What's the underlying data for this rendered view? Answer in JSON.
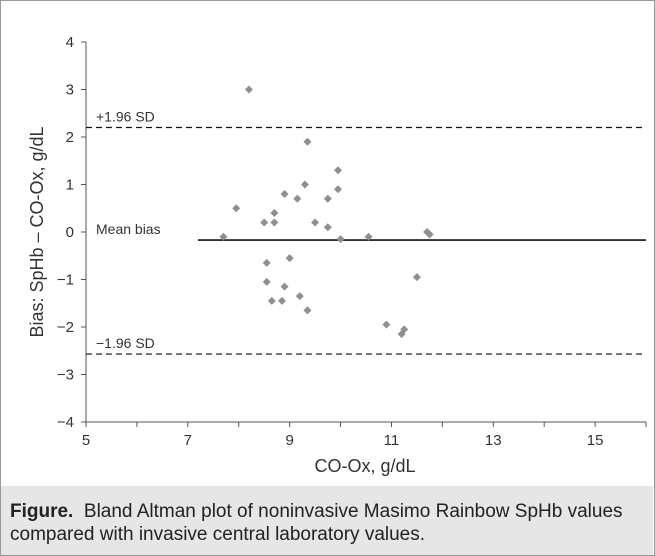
{
  "chart_data": {
    "type": "scatter",
    "xlabel": "CO-Ox, g/dL",
    "ylabel": "Bias: SpHb – CO-Ox, g/dL",
    "xlim": [
      5,
      16
    ],
    "ylim": [
      -4,
      4
    ],
    "xticks": [
      "5",
      "7",
      "9",
      "11",
      "13",
      "15"
    ],
    "yticks": [
      "4",
      "3",
      "2",
      "1",
      "0",
      "−1",
      "−2",
      "−3",
      "−4"
    ],
    "grid": false,
    "marker_color": "#8f8f8f",
    "points": [
      {
        "x": 7.7,
        "y": -0.1
      },
      {
        "x": 7.95,
        "y": 0.5
      },
      {
        "x": 8.2,
        "y": 3.0
      },
      {
        "x": 8.5,
        "y": 0.2
      },
      {
        "x": 8.55,
        "y": -0.65
      },
      {
        "x": 8.55,
        "y": -1.05
      },
      {
        "x": 8.65,
        "y": -1.45
      },
      {
        "x": 8.7,
        "y": 0.4
      },
      {
        "x": 8.7,
        "y": 0.2
      },
      {
        "x": 8.85,
        "y": -1.45
      },
      {
        "x": 8.9,
        "y": 0.8
      },
      {
        "x": 8.9,
        "y": -1.15
      },
      {
        "x": 9.0,
        "y": -0.55
      },
      {
        "x": 9.15,
        "y": 0.7
      },
      {
        "x": 9.2,
        "y": -1.35
      },
      {
        "x": 9.3,
        "y": 1.0
      },
      {
        "x": 9.35,
        "y": 1.9
      },
      {
        "x": 9.35,
        "y": -1.65
      },
      {
        "x": 9.5,
        "y": 0.2
      },
      {
        "x": 9.75,
        "y": 0.7
      },
      {
        "x": 9.75,
        "y": 0.1
      },
      {
        "x": 9.95,
        "y": 1.3
      },
      {
        "x": 9.95,
        "y": 0.9
      },
      {
        "x": 10.0,
        "y": -0.15
      },
      {
        "x": 10.55,
        "y": -0.1
      },
      {
        "x": 10.9,
        "y": -1.95
      },
      {
        "x": 11.2,
        "y": -2.15
      },
      {
        "x": 11.25,
        "y": -2.05
      },
      {
        "x": 11.5,
        "y": -0.95
      },
      {
        "x": 11.7,
        "y": 0.0
      },
      {
        "x": 11.75,
        "y": -0.05
      }
    ],
    "reference_lines": [
      {
        "label": "+1.96 SD",
        "y": 2.2,
        "style": "dashed"
      },
      {
        "label": "Mean bias",
        "y": -0.17,
        "style": "solid",
        "x_start": 7.2
      },
      {
        "label": "−1.96 SD",
        "y": -2.57,
        "style": "dashed"
      }
    ]
  },
  "caption": {
    "label": "Figure.",
    "text": "Bland Altman plot of noninvasive Masimo Rainbow SpHb values compared with invasive central laboratory values."
  }
}
